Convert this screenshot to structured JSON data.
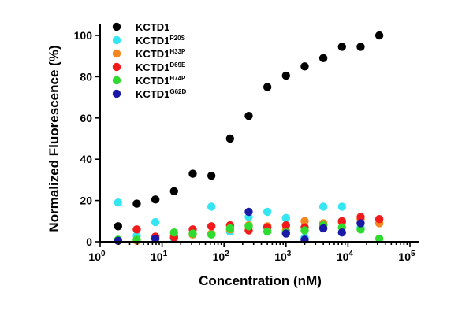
{
  "chart_data": {
    "type": "scatter",
    "title": "",
    "xlabel": "Concentration (nM)",
    "ylabel": "Normalized Fluorescence (%)",
    "xscale": "log",
    "xlim": [
      1,
      100000
    ],
    "ylim": [
      0,
      100
    ],
    "x_ticks": [
      {
        "value": 1,
        "base": "10",
        "exp": "0"
      },
      {
        "value": 10,
        "base": "10",
        "exp": "1"
      },
      {
        "value": 100,
        "base": "10",
        "exp": "2"
      },
      {
        "value": 1000,
        "base": "10",
        "exp": "3"
      },
      {
        "value": 10000,
        "base": "10",
        "exp": "4"
      },
      {
        "value": 100000,
        "base": "10",
        "exp": "5"
      }
    ],
    "y_ticks": [
      "0",
      "20",
      "40",
      "60",
      "80",
      "100"
    ],
    "grid": false,
    "legend_position": "top-left",
    "series": [
      {
        "name": "KCTD1",
        "sub": "",
        "color": "#000000",
        "points": [
          [
            1.95,
            7.5
          ],
          [
            3.9,
            18.5
          ],
          [
            7.8,
            20.5
          ],
          [
            15.6,
            24.5
          ],
          [
            31.25,
            33
          ],
          [
            62.5,
            32
          ],
          [
            125,
            50
          ],
          [
            250,
            61
          ],
          [
            500,
            75
          ],
          [
            1000,
            80.5
          ],
          [
            2000,
            85
          ],
          [
            4000,
            89
          ],
          [
            8000,
            94.5
          ],
          [
            16000,
            94.5
          ],
          [
            32000,
            100
          ]
        ]
      },
      {
        "name": "KCTD1",
        "sub": "P20S",
        "color": "#33e6f2",
        "points": [
          [
            1.95,
            19
          ],
          [
            3.9,
            3
          ],
          [
            7.8,
            9.5
          ],
          [
            15.6,
            1.5
          ],
          [
            62.5,
            17
          ],
          [
            125,
            5
          ],
          [
            250,
            12
          ],
          [
            500,
            14.5
          ],
          [
            1000,
            11.5
          ],
          [
            2000,
            2
          ],
          [
            4000,
            17
          ],
          [
            8000,
            17
          ],
          [
            16000,
            7
          ]
        ]
      },
      {
        "name": "KCTD1",
        "sub": "H33P",
        "color": "#f5871f",
        "points": [
          [
            1.95,
            0.5
          ],
          [
            3.9,
            0.5
          ],
          [
            7.8,
            1.5
          ],
          [
            15.6,
            3
          ],
          [
            31.25,
            3.5
          ],
          [
            62.5,
            4
          ],
          [
            125,
            6
          ],
          [
            250,
            8
          ],
          [
            500,
            7.5
          ],
          [
            1000,
            5.5
          ],
          [
            2000,
            10
          ],
          [
            4000,
            9
          ],
          [
            8000,
            9.5
          ],
          [
            16000,
            11
          ],
          [
            32000,
            9
          ]
        ]
      },
      {
        "name": "KCTD1",
        "sub": "D69E",
        "color": "#f21a1a",
        "points": [
          [
            3.9,
            6
          ],
          [
            7.8,
            2.5
          ],
          [
            15.6,
            2
          ],
          [
            31.25,
            6
          ],
          [
            62.5,
            7.5
          ],
          [
            125,
            8
          ],
          [
            250,
            5.5
          ],
          [
            500,
            7
          ],
          [
            1000,
            8
          ],
          [
            2000,
            7
          ],
          [
            4000,
            8
          ],
          [
            8000,
            10
          ],
          [
            16000,
            12
          ],
          [
            32000,
            11
          ]
        ]
      },
      {
        "name": "KCTD1",
        "sub": "H74P",
        "color": "#2edb2e",
        "points": [
          [
            1.95,
            1
          ],
          [
            3.9,
            1
          ],
          [
            15.6,
            4.5
          ],
          [
            31.25,
            4
          ],
          [
            62.5,
            3.5
          ],
          [
            125,
            6.5
          ],
          [
            250,
            7.5
          ],
          [
            500,
            5
          ],
          [
            1000,
            4.5
          ],
          [
            2000,
            5.5
          ],
          [
            4000,
            8
          ],
          [
            8000,
            7
          ],
          [
            16000,
            6
          ],
          [
            32000,
            1.5
          ]
        ]
      },
      {
        "name": "KCTD1",
        "sub": "G62D",
        "color": "#1a1aa8",
        "points": [
          [
            1.95,
            0.5
          ],
          [
            7.8,
            1.5
          ],
          [
            250,
            14.5
          ],
          [
            1000,
            4
          ],
          [
            2000,
            1
          ],
          [
            4000,
            6.5
          ],
          [
            8000,
            4.5
          ],
          [
            16000,
            9
          ]
        ]
      }
    ]
  }
}
